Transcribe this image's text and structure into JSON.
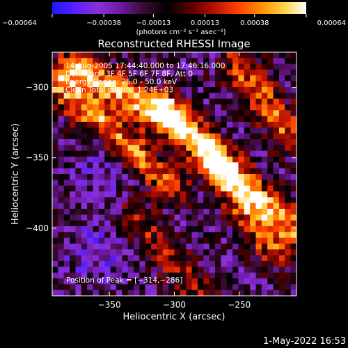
{
  "chart_data": {
    "type": "heatmap",
    "title": "Reconstructed RHESSI Image",
    "xlabel": "Heliocentric X (arcsec)",
    "ylabel": "Heliocentric Y (arcsec)",
    "xlim": [
      -394,
      -206
    ],
    "ylim": [
      -448,
      -275
    ],
    "xticks": [
      -350,
      -300,
      -250
    ],
    "xtick_labels": [
      "−350",
      "−300",
      "−250"
    ],
    "yticks": [
      -300,
      -350,
      -400
    ],
    "ytick_labels": [
      "−300",
      "−350",
      "−400"
    ],
    "colorbar": {
      "range": [
        -0.00064,
        0.00064
      ],
      "ticks": [
        -0.00064,
        -0.00038,
        -0.00013,
        0.00013,
        0.00038,
        0.00064
      ],
      "tick_labels": [
        "−0.00064",
        "−0.00038",
        "−0.00013",
        "0.00013",
        "0.00038",
        "0.00064"
      ],
      "unit_label": "(photons cm⁻² s⁻¹ asec⁻²)",
      "colormap": [
        "#1a1aff",
        "#5a20ff",
        "#8a30d8",
        "#6a1aa0",
        "#3a0a30",
        "#000000",
        "#5a0000",
        "#b01000",
        "#ff4000",
        "#ff8a00",
        "#ffd040",
        "#ffffff"
      ]
    },
    "annotations": [
      "14-Aug-2005 17:44:40.000 to 17:46:16.000",
      "Detectors: 3F 4F 5F 6F 7F 8F, Att 0",
      "Energy Range: 25.0 - 50.0 keV",
      "Clean     Total counts: 1.24E+03"
    ],
    "peak_label": "Position of Peak = [−314,−286]",
    "peak": {
      "x": -314,
      "y": -286
    },
    "bright_ridges": [
      {
        "from": [
          -394,
          -293
        ],
        "to": [
          -303,
          -368
        ],
        "peak_value": 0.0006
      },
      {
        "from": [
          -375,
          -285
        ],
        "to": [
          -300,
          -325
        ],
        "peak_value": 0.00064
      },
      {
        "from": [
          -305,
          -318
        ],
        "to": [
          -210,
          -400
        ],
        "peak_value": 0.0006
      },
      {
        "from": [
          -250,
          -285
        ],
        "to": [
          -210,
          -335
        ],
        "peak_value": 0.0005
      },
      {
        "from": [
          -275,
          -345
        ],
        "to": [
          -225,
          -415
        ],
        "peak_value": 0.00045
      },
      {
        "from": [
          -330,
          -393
        ],
        "to": [
          -280,
          -448
        ],
        "peak_value": 0.0003
      }
    ],
    "dark_regions": [
      {
        "center": [
          -355,
          -355
        ],
        "value": -0.00035
      },
      {
        "center": [
          -360,
          -418
        ],
        "value": -0.00045
      },
      {
        "center": [
          -310,
          -350
        ],
        "value": -0.0003
      }
    ]
  },
  "footer": {
    "timestamp": "1-May-2022 16:53"
  }
}
